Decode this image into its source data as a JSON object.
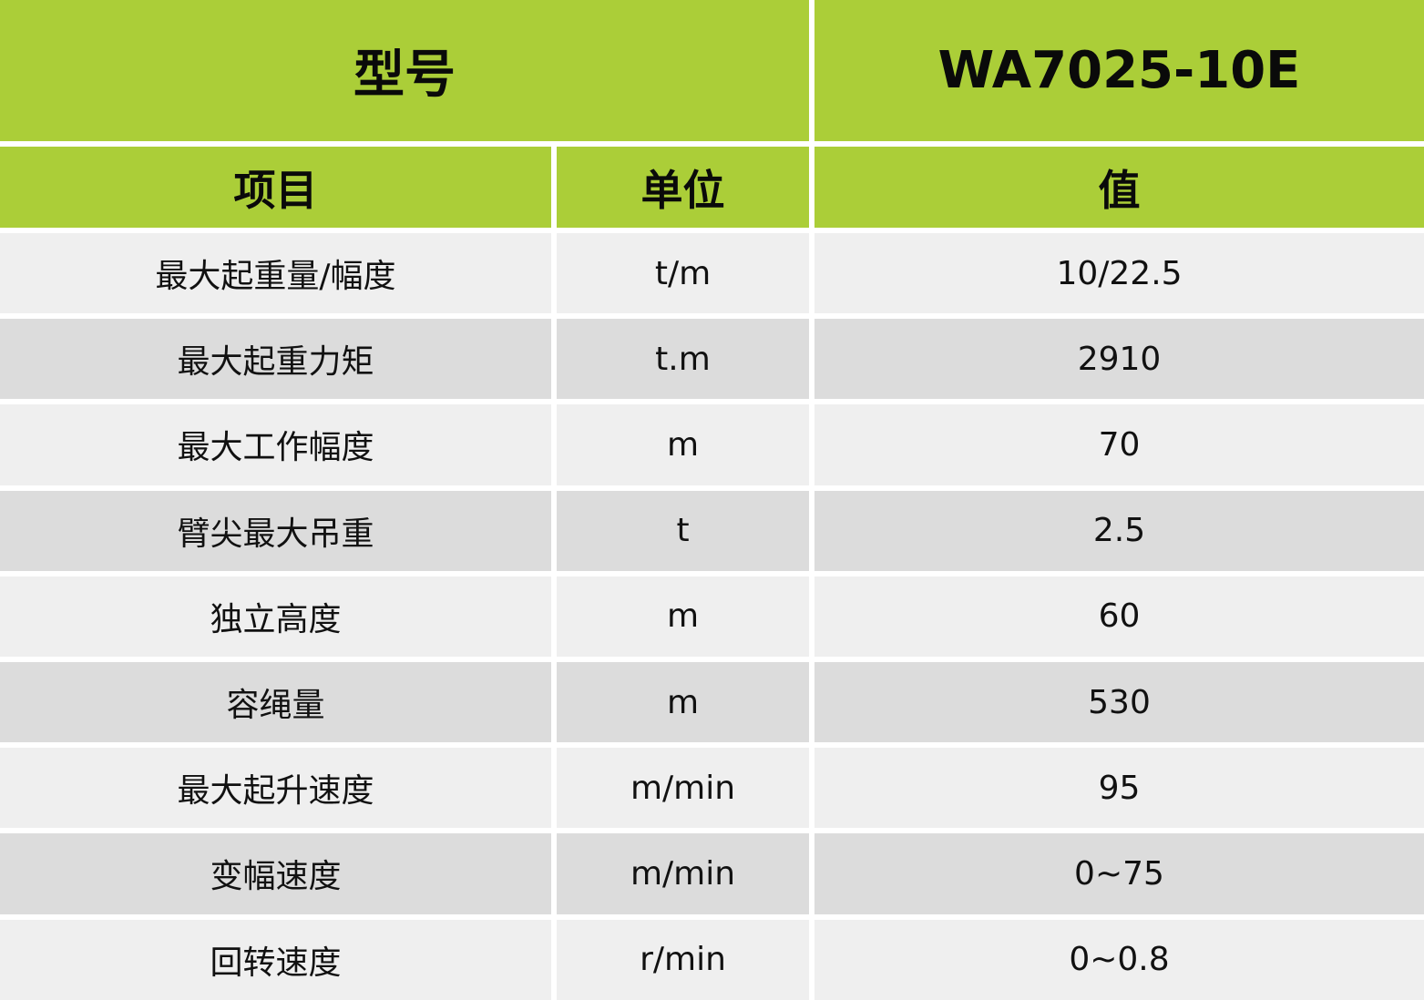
{
  "header": {
    "model_label": "型号",
    "model_value": "WA7025-10E"
  },
  "columns": {
    "item": "项目",
    "unit": "单位",
    "value": "值"
  },
  "rows": [
    {
      "item": "最大起重量/幅度",
      "unit": "t/m",
      "value": "10/22.5"
    },
    {
      "item": "最大起重力矩",
      "unit": "t.m",
      "value": "2910"
    },
    {
      "item": "最大工作幅度",
      "unit": "m",
      "value": "70"
    },
    {
      "item": "臂尖最大吊重",
      "unit": "t",
      "value": "2.5"
    },
    {
      "item": "独立高度",
      "unit": "m",
      "value": "60"
    },
    {
      "item": "容绳量",
      "unit": "m",
      "value": "530"
    },
    {
      "item": "最大起升速度",
      "unit": "m/min",
      "value": "95"
    },
    {
      "item": "变幅速度",
      "unit": "m/min",
      "value": "0~75"
    },
    {
      "item": "回转速度",
      "unit": "r/min",
      "value": "0~0.8"
    }
  ],
  "colors": {
    "header_green": "#abce38",
    "row_light": "#efefef",
    "row_dark": "#dcdcdc"
  }
}
